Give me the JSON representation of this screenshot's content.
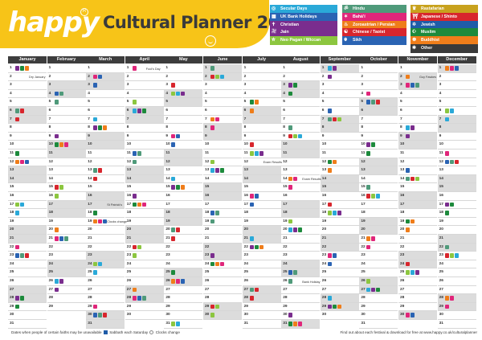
{
  "header": {
    "logo": "happy",
    "title": "Cultural Planner 2024"
  },
  "legend": [
    {
      "label": "Secular Days",
      "color": "#2aa9d8",
      "icon": "globe-icon",
      "glyph": "◎"
    },
    {
      "label": "Hindu",
      "color": "#4f9a7a",
      "icon": "om-icon",
      "glyph": "ॐ"
    },
    {
      "label": "Rastafarian",
      "color": "#c8a21d",
      "icon": "lion-icon",
      "glyph": "♛"
    },
    {
      "label": "UK Bank Holidays",
      "color": "#2a63b3",
      "icon": "bank-icon",
      "glyph": "▦"
    },
    {
      "label": "Bahá'í",
      "color": "#e0267a",
      "icon": "star-icon",
      "glyph": "✶"
    },
    {
      "label": "Japanese / Shinto",
      "color": "#d8262d",
      "icon": "torii-icon",
      "glyph": "⛩"
    },
    {
      "label": "Christian",
      "color": "#7a2d8e",
      "icon": "cross-icon",
      "glyph": "✝"
    },
    {
      "label": "Jain",
      "color": "#7a2d8e",
      "icon": "jain-icon",
      "glyph": "卍"
    },
    {
      "label": "Zoroastrian / Persian",
      "color": "#ef7d1a",
      "icon": "flame-icon",
      "glyph": "♨"
    },
    {
      "label": "Jewish",
      "color": "#1f5ca8",
      "icon": "star-of-david-icon",
      "glyph": "✡"
    },
    {
      "label": "Neo Pagan / Wiccan",
      "color": "#8cc63f",
      "icon": "pentagram-icon",
      "glyph": "⛤"
    },
    {
      "label": "Chinese / Taoist",
      "color": "#d8262d",
      "icon": "yin-yang-icon",
      "glyph": "☯"
    },
    {
      "label": "Muslim",
      "color": "#1d8a3c",
      "icon": "crescent-icon",
      "glyph": "☪"
    },
    {
      "label": "Sikh",
      "color": "#2a63b3",
      "icon": "khanda-icon",
      "glyph": "☬"
    },
    {
      "label": "Buddhist",
      "color": "#ef7d1a",
      "icon": "dharma-wheel-icon",
      "glyph": "☸"
    },
    {
      "label": "Other",
      "color": "#3a3a3a",
      "icon": "asterisk-icon",
      "glyph": "✱"
    }
  ],
  "months": [
    "January",
    "February",
    "March",
    "April",
    "May",
    "June",
    "July",
    "August",
    "September",
    "October",
    "November",
    "December"
  ],
  "days_in_month": [
    31,
    29,
    31,
    30,
    31,
    30,
    31,
    31,
    30,
    31,
    30,
    31
  ],
  "first_weekday": [
    0,
    3,
    4,
    0,
    2,
    5,
    0,
    3,
    6,
    1,
    4,
    6
  ],
  "notes": [
    {
      "month": 0,
      "day": 2,
      "text": "Dry January"
    },
    {
      "month": 3,
      "day": 1,
      "text": "Fool's Day"
    },
    {
      "month": 7,
      "day": 14,
      "text": "Exam Results"
    },
    {
      "month": 10,
      "day": 2,
      "text": "Guy Fawkes"
    },
    {
      "month": 2,
      "day": 19,
      "text": "Clocks change"
    },
    {
      "month": 6,
      "day": 12,
      "text": "Exam Results"
    },
    {
      "month": 7,
      "day": 26,
      "text": "Bank Holiday"
    },
    {
      "month": 0,
      "day": 8,
      "text": ""
    },
    {
      "month": 2,
      "day": 17,
      "text": "St Patrick's"
    }
  ],
  "footer": {
    "left_text": "Dates when people of certain faiths may be unavailable",
    "sabbath_text": "Sabbath each Saturday",
    "clocks_text": "Clocks change",
    "right_text": "Find out about each festival & download for free at www.happy.co.uk/culturalplanner"
  }
}
